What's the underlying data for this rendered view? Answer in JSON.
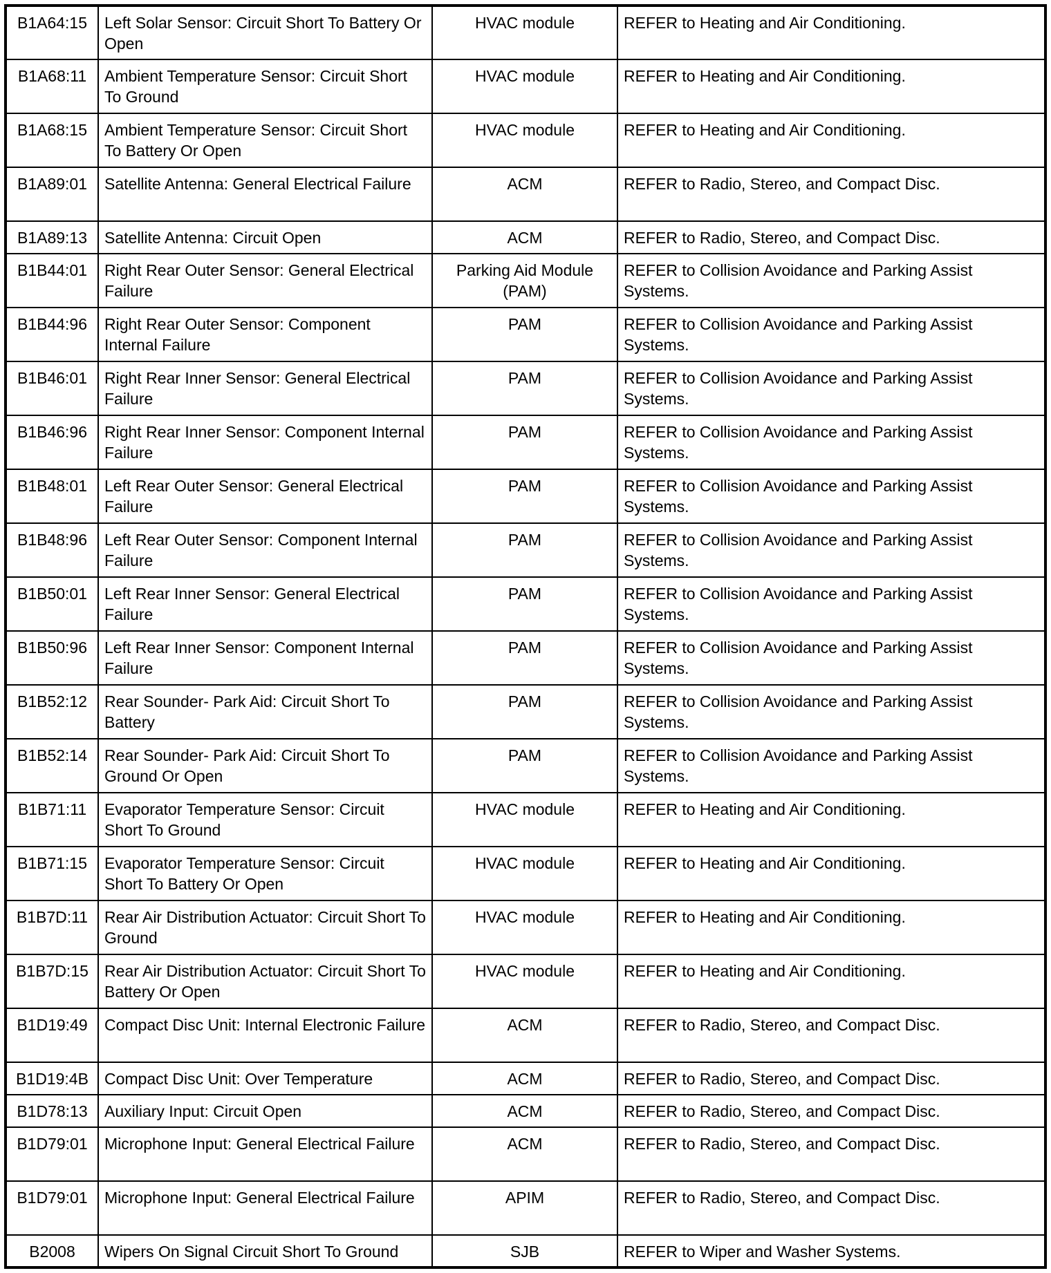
{
  "rows": [
    {
      "code": "B1A64:15",
      "description": "Left Solar Sensor: Circuit Short To Battery Or Open",
      "module": "HVAC module",
      "action": "REFER to Heating and Air Conditioning."
    },
    {
      "code": "B1A68:11",
      "description": "Ambient Temperature Sensor: Circuit Short To Ground",
      "module": "HVAC module",
      "action": "REFER to Heating and Air Conditioning."
    },
    {
      "code": "B1A68:15",
      "description": "Ambient Temperature Sensor: Circuit Short To Battery Or Open",
      "module": "HVAC module",
      "action": "REFER to Heating and Air Conditioning."
    },
    {
      "code": "B1A89:01",
      "description": "Satellite Antenna: General Electrical Failure",
      "module": "ACM",
      "action": "REFER to Radio, Stereo, and Compact Disc."
    },
    {
      "code": "B1A89:13",
      "description": "Satellite Antenna: Circuit Open",
      "module": "ACM",
      "action": "REFER to Radio, Stereo, and Compact Disc."
    },
    {
      "code": "B1B44:01",
      "description": "Right Rear Outer Sensor: General Electrical Failure",
      "module": "Parking Aid Module (PAM)",
      "action": "REFER to Collision Avoidance and Parking Assist Systems."
    },
    {
      "code": "B1B44:96",
      "description": "Right Rear Outer Sensor: Component Internal Failure",
      "module": "PAM",
      "action": "REFER to Collision Avoidance and Parking Assist Systems."
    },
    {
      "code": "B1B46:01",
      "description": "Right Rear Inner Sensor: General Electrical Failure",
      "module": "PAM",
      "action": "REFER to Collision Avoidance and Parking Assist Systems."
    },
    {
      "code": "B1B46:96",
      "description": "Right Rear Inner Sensor: Component Internal Failure",
      "module": "PAM",
      "action": "REFER to Collision Avoidance and Parking Assist Systems."
    },
    {
      "code": "B1B48:01",
      "description": "Left Rear Outer Sensor: General Electrical Failure",
      "module": "PAM",
      "action": "REFER to Collision Avoidance and Parking Assist Systems."
    },
    {
      "code": "B1B48:96",
      "description": "Left Rear Outer Sensor: Component Internal Failure",
      "module": "PAM",
      "action": "REFER to Collision Avoidance and Parking Assist Systems."
    },
    {
      "code": "B1B50:01",
      "description": "Left Rear Inner Sensor: General Electrical Failure",
      "module": "PAM",
      "action": "REFER to Collision Avoidance and Parking Assist Systems."
    },
    {
      "code": "B1B50:96",
      "description": "Left Rear Inner Sensor: Component Internal Failure",
      "module": "PAM",
      "action": "REFER to Collision Avoidance and Parking Assist Systems."
    },
    {
      "code": "B1B52:12",
      "description": "Rear Sounder- Park Aid: Circuit Short To Battery",
      "module": "PAM",
      "action": "REFER to Collision Avoidance and Parking Assist Systems."
    },
    {
      "code": "B1B52:14",
      "description": "Rear Sounder- Park Aid: Circuit Short To Ground Or Open",
      "module": "PAM",
      "action": "REFER to Collision Avoidance and Parking Assist Systems."
    },
    {
      "code": "B1B71:11",
      "description": "Evaporator Temperature Sensor: Circuit Short To Ground",
      "module": "HVAC module",
      "action": "REFER to Heating and Air Conditioning."
    },
    {
      "code": "B1B71:15",
      "description": "Evaporator Temperature Sensor: Circuit Short To Battery Or Open",
      "module": "HVAC module",
      "action": "REFER to Heating and Air Conditioning."
    },
    {
      "code": "B1B7D:11",
      "description": "Rear Air Distribution Actuator: Circuit Short To Ground",
      "module": "HVAC module",
      "action": "REFER to Heating and Air Conditioning."
    },
    {
      "code": "B1B7D:15",
      "description": "Rear Air Distribution Actuator: Circuit Short To Battery Or Open",
      "module": "HVAC module",
      "action": "REFER to Heating and Air Conditioning."
    },
    {
      "code": "B1D19:49",
      "description": "Compact Disc Unit: Internal Electronic Failure",
      "module": "ACM",
      "action": "REFER to Radio, Stereo, and Compact Disc."
    },
    {
      "code": "B1D19:4B",
      "description": "Compact Disc Unit: Over Temperature",
      "module": "ACM",
      "action": "REFER to Radio, Stereo, and Compact Disc."
    },
    {
      "code": "B1D78:13",
      "description": "Auxiliary Input: Circuit Open",
      "module": "ACM",
      "action": "REFER to Radio, Stereo, and Compact Disc."
    },
    {
      "code": "B1D79:01",
      "description": "Microphone Input: General Electrical Failure",
      "module": "ACM",
      "action": "REFER to Radio, Stereo, and Compact Disc."
    },
    {
      "code": "B1D79:01",
      "description": "Microphone Input: General Electrical Failure",
      "module": "APIM",
      "action": "REFER to Radio, Stereo, and Compact Disc."
    },
    {
      "code": "B2008",
      "description": "Wipers On Signal Circuit Short To Ground",
      "module": "SJB",
      "action": "REFER to Wiper and Washer Systems."
    }
  ]
}
